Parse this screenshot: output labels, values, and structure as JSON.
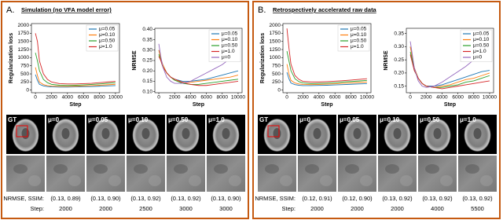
{
  "chart_data": [
    {
      "type": "line",
      "xlabel": "Step",
      "ylabel": "Regularization loss",
      "x": [
        0,
        250,
        500,
        1000,
        1500,
        2000,
        3000,
        4000,
        5000,
        6000,
        7000,
        8000,
        9000,
        10000
      ],
      "xlim": [
        -500,
        10500
      ],
      "xticks": [
        0,
        2000,
        4000,
        6000,
        8000,
        10000
      ],
      "ylim": [
        -80,
        2050
      ],
      "yticks": [
        0,
        250,
        500,
        750,
        1000,
        1250,
        1500,
        1750,
        2000
      ],
      "legend": "upper right",
      "series": [
        {
          "name": "μ=0.05",
          "color": "#1f77b4",
          "values": [
            480,
            300,
            180,
            130,
            110,
            100,
            95,
            95,
            100,
            105,
            110,
            120,
            130,
            140
          ]
        },
        {
          "name": "μ=0.10",
          "color": "#ff7f0e",
          "values": [
            700,
            450,
            250,
            170,
            140,
            125,
            115,
            115,
            120,
            130,
            140,
            150,
            165,
            180
          ]
        },
        {
          "name": "μ=0.50",
          "color": "#2ca02c",
          "values": [
            1150,
            900,
            600,
            330,
            230,
            180,
            150,
            145,
            150,
            160,
            175,
            190,
            210,
            230
          ]
        },
        {
          "name": "μ=1.0",
          "color": "#d62728",
          "values": [
            1750,
            1500,
            900,
            500,
            330,
            250,
            200,
            190,
            190,
            200,
            210,
            230,
            250,
            270
          ]
        }
      ]
    },
    {
      "type": "line",
      "xlabel": "Step",
      "ylabel": "NRMSE",
      "x": [
        0,
        250,
        500,
        1000,
        1500,
        2000,
        3000,
        4000,
        5000,
        6000,
        7000,
        8000,
        9000,
        10000
      ],
      "xlim": [
        -500,
        10500
      ],
      "xticks": [
        0,
        2000,
        4000,
        6000,
        8000,
        10000
      ],
      "ylim": [
        0.095,
        0.405
      ],
      "yticks": [
        {
          "value": 0.1,
          "label": "0.10"
        },
        0.15,
        {
          "value": 0.2,
          "label": "0.20"
        },
        0.25,
        {
          "value": 0.3,
          "label": "0.30"
        },
        0.35,
        {
          "value": 0.4,
          "label": "0.40"
        }
      ],
      "legend": "upper right",
      "series": [
        {
          "name": "μ=0.05",
          "color": "#1f77b4",
          "values": [
            0.3,
            0.26,
            0.23,
            0.19,
            0.17,
            0.16,
            0.15,
            0.15,
            0.155,
            0.16,
            0.17,
            0.18,
            0.19,
            0.2
          ]
        },
        {
          "name": "μ=0.10",
          "color": "#ff7f0e",
          "values": [
            0.3,
            0.26,
            0.23,
            0.19,
            0.17,
            0.155,
            0.145,
            0.145,
            0.15,
            0.155,
            0.16,
            0.165,
            0.17,
            0.18
          ]
        },
        {
          "name": "μ=0.50",
          "color": "#2ca02c",
          "values": [
            0.28,
            0.25,
            0.22,
            0.19,
            0.17,
            0.155,
            0.14,
            0.135,
            0.135,
            0.14,
            0.145,
            0.15,
            0.155,
            0.16
          ]
        },
        {
          "name": "μ=1.0",
          "color": "#d62728",
          "values": [
            0.27,
            0.25,
            0.22,
            0.19,
            0.17,
            0.16,
            0.145,
            0.135,
            0.13,
            0.13,
            0.135,
            0.14,
            0.145,
            0.15
          ]
        },
        {
          "name": "μ=0",
          "color": "#9467bd",
          "values": [
            0.33,
            0.27,
            0.22,
            0.17,
            0.15,
            0.14,
            0.14,
            0.15,
            0.17,
            0.19,
            0.21,
            0.23,
            0.26,
            0.28
          ]
        }
      ]
    },
    {
      "type": "line",
      "xlabel": "Step",
      "ylabel": "Regularization loss",
      "x": [
        0,
        250,
        500,
        1000,
        1500,
        2000,
        3000,
        4000,
        5000,
        6000,
        7000,
        8000,
        9000,
        10000
      ],
      "xlim": [
        -500,
        10500
      ],
      "xticks": [
        0,
        2000,
        4000,
        6000,
        8000,
        10000
      ],
      "ylim": [
        -80,
        2050
      ],
      "yticks": [
        0,
        250,
        500,
        750,
        1000,
        1250,
        1500,
        1750,
        2000
      ],
      "legend": "upper right",
      "series": [
        {
          "name": "μ=0.05",
          "color": "#1f77b4",
          "values": [
            550,
            350,
            220,
            170,
            150,
            140,
            140,
            145,
            150,
            160,
            170,
            180,
            190,
            200
          ]
        },
        {
          "name": "μ=0.10",
          "color": "#ff7f0e",
          "values": [
            800,
            500,
            300,
            220,
            190,
            175,
            170,
            175,
            185,
            195,
            210,
            220,
            235,
            250
          ]
        },
        {
          "name": "μ=0.50",
          "color": "#2ca02c",
          "values": [
            1200,
            900,
            600,
            350,
            260,
            220,
            200,
            205,
            215,
            230,
            250,
            265,
            280,
            300
          ]
        },
        {
          "name": "μ=1.0",
          "color": "#d62728",
          "values": [
            1900,
            1300,
            800,
            450,
            330,
            270,
            250,
            250,
            260,
            275,
            290,
            310,
            330,
            350
          ]
        }
      ]
    },
    {
      "type": "line",
      "xlabel": "Step",
      "ylabel": "NRMSE",
      "x": [
        0,
        250,
        500,
        1000,
        1500,
        2000,
        3000,
        4000,
        5000,
        6000,
        7000,
        8000,
        9000,
        10000
      ],
      "xlim": [
        -500,
        10500
      ],
      "xticks": [
        0,
        2000,
        4000,
        6000,
        8000,
        10000
      ],
      "ylim": [
        0.125,
        0.37
      ],
      "yticks": [
        0.15,
        {
          "value": 0.2,
          "label": "0.20"
        },
        0.25,
        {
          "value": 0.3,
          "label": "0.30"
        },
        0.35
      ],
      "legend": "upper right",
      "series": [
        {
          "name": "μ=0.05",
          "color": "#1f77b4",
          "values": [
            0.3,
            0.26,
            0.22,
            0.18,
            0.16,
            0.15,
            0.15,
            0.155,
            0.165,
            0.175,
            0.185,
            0.195,
            0.205,
            0.21
          ]
        },
        {
          "name": "μ=0.10",
          "color": "#ff7f0e",
          "values": [
            0.3,
            0.26,
            0.22,
            0.18,
            0.16,
            0.15,
            0.145,
            0.15,
            0.155,
            0.165,
            0.175,
            0.18,
            0.19,
            0.2
          ]
        },
        {
          "name": "μ=0.50",
          "color": "#2ca02c",
          "values": [
            0.28,
            0.25,
            0.21,
            0.18,
            0.16,
            0.15,
            0.145,
            0.145,
            0.15,
            0.155,
            0.165,
            0.17,
            0.18,
            0.19
          ]
        },
        {
          "name": "μ=1.0",
          "color": "#d62728",
          "values": [
            0.27,
            0.24,
            0.21,
            0.18,
            0.16,
            0.15,
            0.145,
            0.14,
            0.145,
            0.15,
            0.155,
            0.16,
            0.165,
            0.17
          ]
        },
        {
          "name": "μ=0",
          "color": "#9467bd",
          "values": [
            0.32,
            0.27,
            0.22,
            0.17,
            0.15,
            0.145,
            0.15,
            0.165,
            0.185,
            0.205,
            0.225,
            0.25,
            0.275,
            0.3
          ]
        }
      ]
    }
  ],
  "panels": [
    {
      "label": "A.",
      "title": "Simulation (no VFA model error)",
      "images": [
        "GT",
        "μ=0",
        "μ=0.05",
        "μ=0.10",
        "μ=0.50",
        "μ=1.0"
      ],
      "metrics_label": "NRMSE, SSIM:",
      "step_label": "Step:",
      "metrics": [
        "(0.13, 0.89)",
        "(0.13, 0.90)",
        "(0.13, 0.92)",
        "(0.13, 0.92)",
        "(0.13, 0.90)"
      ],
      "steps": [
        2000,
        2000,
        2500,
        3000,
        3000
      ]
    },
    {
      "label": "B.",
      "title": "Retrospectively accelerated raw data",
      "images": [
        "GT",
        "μ=0",
        "μ=0.05",
        "μ=0.10",
        "μ=0.50",
        "μ=1.0"
      ],
      "metrics_label": "NRMSE, SSIM:",
      "step_label": "Step:",
      "metrics": [
        "(0.12, 0.91)",
        "(0.12, 0.90)",
        "(0.13, 0.92)",
        "(0.13, 0.92)",
        "(0.13, 0.92)"
      ],
      "steps": [
        2000,
        2000,
        2000,
        4000,
        5500
      ]
    }
  ]
}
